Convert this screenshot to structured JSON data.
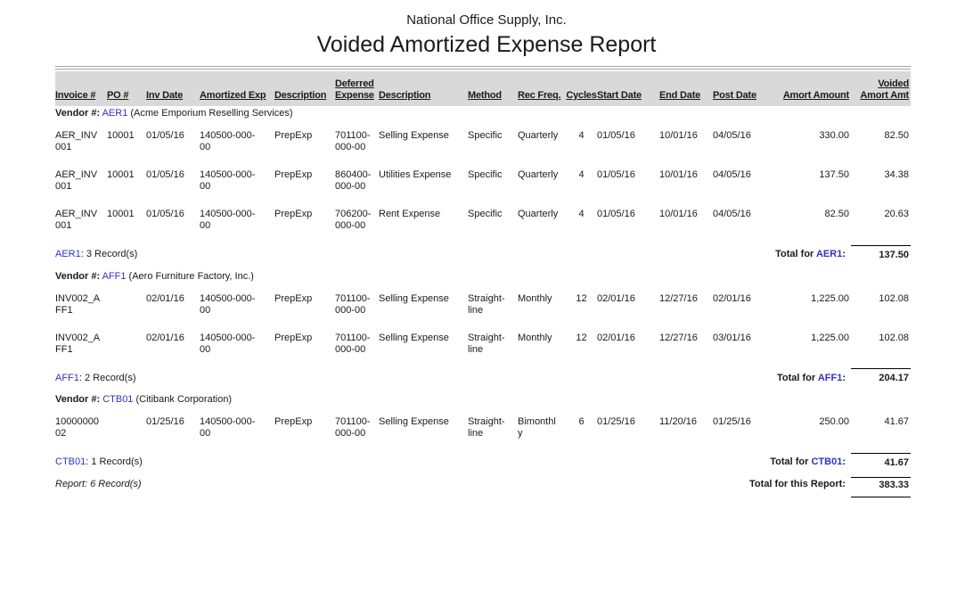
{
  "colors": {
    "link_blue": "#3232C8",
    "header_band": "#D9D9D9",
    "rule_gray": "#A3A3A3",
    "total_line": "#000000"
  },
  "header": {
    "company": "National Office Supply, Inc.",
    "title": "Voided Amortized Expense Report"
  },
  "columns": [
    "Invoice #",
    "PO #",
    "Inv Date",
    "Amortized Exp",
    "Description",
    "Deferred Expense",
    "Description",
    "Method",
    "Rec Freq.",
    "Cycles",
    "Start Date",
    "End Date",
    "Post Date",
    "Amort Amount",
    "Voided Amort Amt"
  ],
  "groups": [
    {
      "vendor_label": "Vendor #:",
      "vendor_code": "AER1",
      "vendor_name": "(Acme Emporium Reselling Services)",
      "rows": [
        [
          "AER_INV001",
          "10001",
          "01/05/16",
          "140500-000-00",
          "PrepExp",
          "701100-000-00",
          "Selling Expense",
          "Specific",
          "Quarterly",
          "4",
          "01/05/16",
          "10/01/16",
          "04/05/16",
          "330.00",
          "82.50"
        ],
        [
          "AER_INV001",
          "10001",
          "01/05/16",
          "140500-000-00",
          "PrepExp",
          "860400-000-00",
          "Utilities Expense",
          "Specific",
          "Quarterly",
          "4",
          "01/05/16",
          "10/01/16",
          "04/05/16",
          "137.50",
          "34.38"
        ],
        [
          "AER_INV001",
          "10001",
          "01/05/16",
          "140500-000-00",
          "PrepExp",
          "706200-000-00",
          "Rent Expense",
          "Specific",
          "Quarterly",
          "4",
          "01/05/16",
          "10/01/16",
          "04/05/16",
          "82.50",
          "20.63"
        ]
      ],
      "count_text": ": 3 Record(s)",
      "total_label": "Total for",
      "total_suffix": ":",
      "total_value": "137.50"
    },
    {
      "vendor_label": "Vendor #:",
      "vendor_code": "AFF1",
      "vendor_name": "(Aero Furniture Factory, Inc.)",
      "rows": [
        [
          "INV002_AFF1",
          "",
          "02/01/16",
          "140500-000-00",
          "PrepExp",
          "701100-000-00",
          "Selling Expense",
          "Straight-line",
          "Monthly",
          "12",
          "02/01/16",
          "12/27/16",
          "02/01/16",
          "1,225.00",
          "102.08"
        ],
        [
          "INV002_AFF1",
          "",
          "02/01/16",
          "140500-000-00",
          "PrepExp",
          "701100-000-00",
          "Selling Expense",
          "Straight-line",
          "Monthly",
          "12",
          "02/01/16",
          "12/27/16",
          "03/01/16",
          "1,225.00",
          "102.08"
        ]
      ],
      "count_text": ": 2 Record(s)",
      "total_label": "Total for",
      "total_suffix": ":",
      "total_value": "204.17"
    },
    {
      "vendor_label": "Vendor #:",
      "vendor_code": "CTB01",
      "vendor_name": "(Citibank Corporation)",
      "rows": [
        [
          "1000000002",
          "",
          "01/25/16",
          "140500-000-00",
          "PrepExp",
          "701100-000-00",
          "Selling Expense",
          "Straight-line",
          "Bimonthly",
          "6",
          "01/25/16",
          "11/20/16",
          "01/25/16",
          "250.00",
          "41.67"
        ]
      ],
      "count_text": ": 1 Record(s)",
      "total_label": "Total for",
      "total_suffix": ":",
      "total_value": "41.67"
    }
  ],
  "summary": {
    "label": "Report: 6 Record(s)",
    "total_label": "Total for this Report:",
    "total_value": "383.33"
  }
}
